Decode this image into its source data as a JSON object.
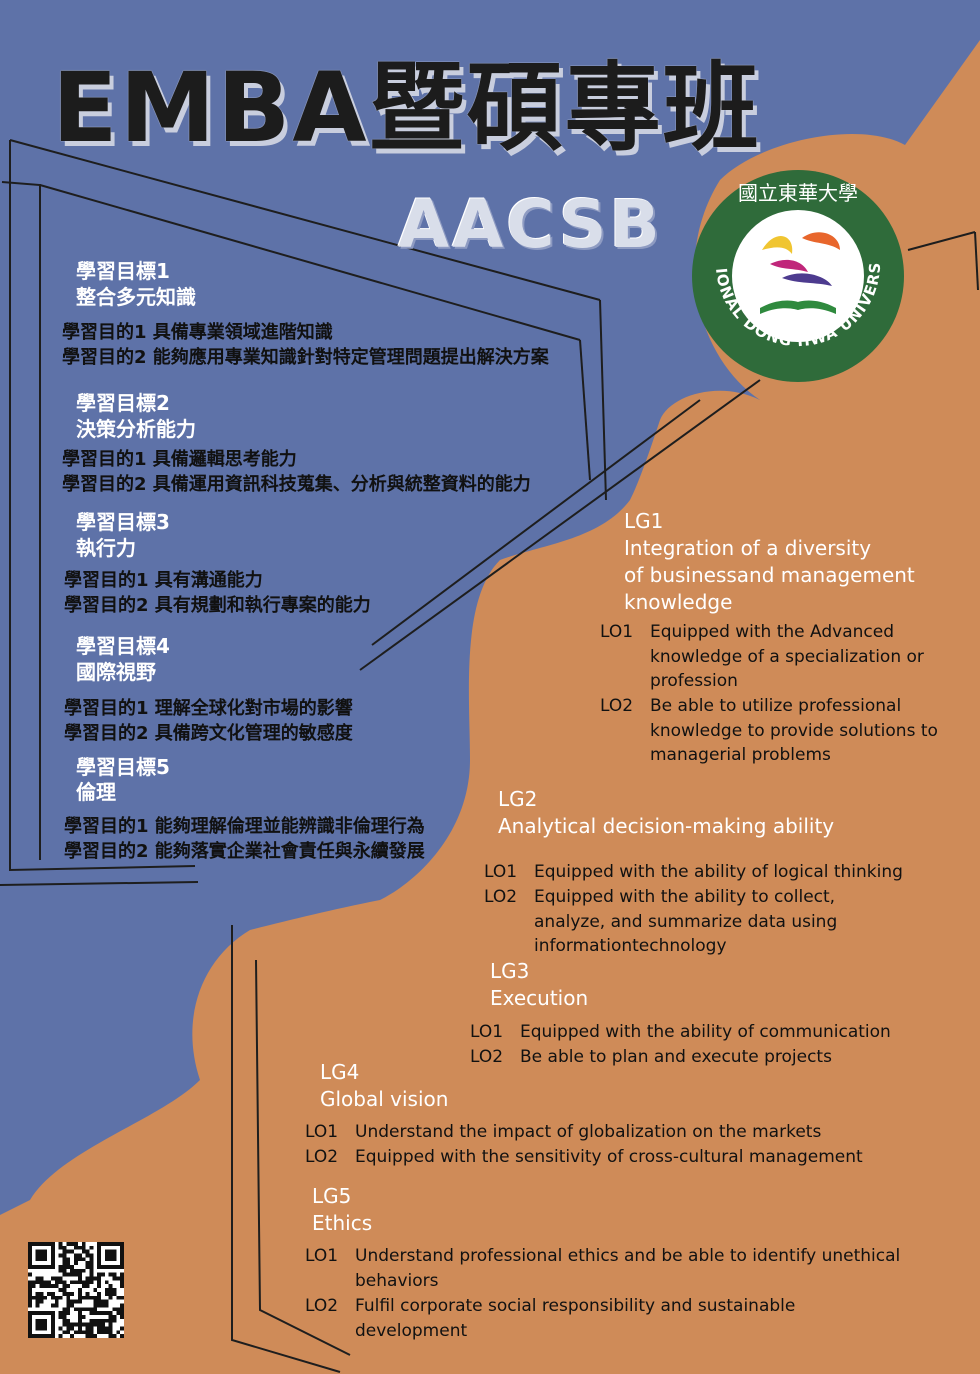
{
  "header": {
    "title": "EMBA暨碩專班",
    "subtitle": "AACSB"
  },
  "logo": {
    "name": "national-dong-hwa-university-seal",
    "chinese_text": "國立東華大學",
    "english_text": "NATIONAL DONG HWA UNIVERSITY",
    "ring_color": "#2f6b3a"
  },
  "colors": {
    "blue_background": "#5e72a8",
    "orange_background": "#cf8b58"
  },
  "zh_goals": [
    {
      "title": "學習目標1",
      "name": "整合多元知識",
      "objectives": [
        "學習目的1 具備專業領域進階知識",
        "學習目的2 能夠應用專業知識針對特定管理問題提出解決方案"
      ]
    },
    {
      "title": "學習目標2",
      "name": "決策分析能力",
      "objectives": [
        "學習目的1  具備邏輯思考能力",
        "學習目的2  具備運用資訊科技蒐集、分析與統整資料的能力"
      ]
    },
    {
      "title": "學習目標3",
      "name": "執行力",
      "objectives": [
        "學習目的1  具有溝通能力",
        "學習目的2  具有規劃和執行專案的能力"
      ]
    },
    {
      "title": "學習目標4",
      "name": "國際視野",
      "objectives": [
        "學習目的1  理解全球化對市場的影響",
        "學習目的2  具備跨文化管理的敏感度"
      ]
    },
    {
      "title": "學習目標5",
      "name": "倫理",
      "objectives": [
        "學習目的1  能夠理解倫理並能辨識非倫理行為",
        "學習目的2  能夠落實企業社會責任與永續發展"
      ]
    }
  ],
  "en_goals": [
    {
      "code": "LG1",
      "name_lines": [
        "Integration of a diversity",
        "of businessand management",
        "knowledge"
      ],
      "objectives": [
        {
          "num": "LO1",
          "text": "Equipped with the Advanced knowledge of a specialization or profession"
        },
        {
          "num": "LO2",
          "text": "Be able to utilize professional knowledge to provide solutions to managerial problems"
        }
      ]
    },
    {
      "code": "LG2",
      "name_lines": [
        "Analytical decision-making ability"
      ],
      "objectives": [
        {
          "num": "LO1",
          "text": "Equipped with the ability of logical thinking"
        },
        {
          "num": "LO2",
          "text": "Equipped with the ability to collect, analyze, and summarize data using informationtechnology"
        }
      ]
    },
    {
      "code": "LG3",
      "name_lines": [
        "Execution"
      ],
      "objectives": [
        {
          "num": "LO1",
          "text": "Equipped with the ability of communication"
        },
        {
          "num": "LO2",
          "text": "Be able to plan and execute projects"
        }
      ]
    },
    {
      "code": "LG4",
      "name_lines": [
        "Global vision"
      ],
      "objectives": [
        {
          "num": "LO1",
          "text": "Understand  the impact of globalization on the markets"
        },
        {
          "num": "LO2",
          "text": "Equipped with the sensitivity of cross-cultural management"
        }
      ]
    },
    {
      "code": "LG5",
      "name_lines": [
        "Ethics"
      ],
      "objectives": [
        {
          "num": "LO1",
          "text": "Understand professional ethics and be able to identify unethical behaviors"
        },
        {
          "num": "LO2",
          "text": "Fulfil corporate social responsibility and sustainable development"
        }
      ]
    }
  ]
}
